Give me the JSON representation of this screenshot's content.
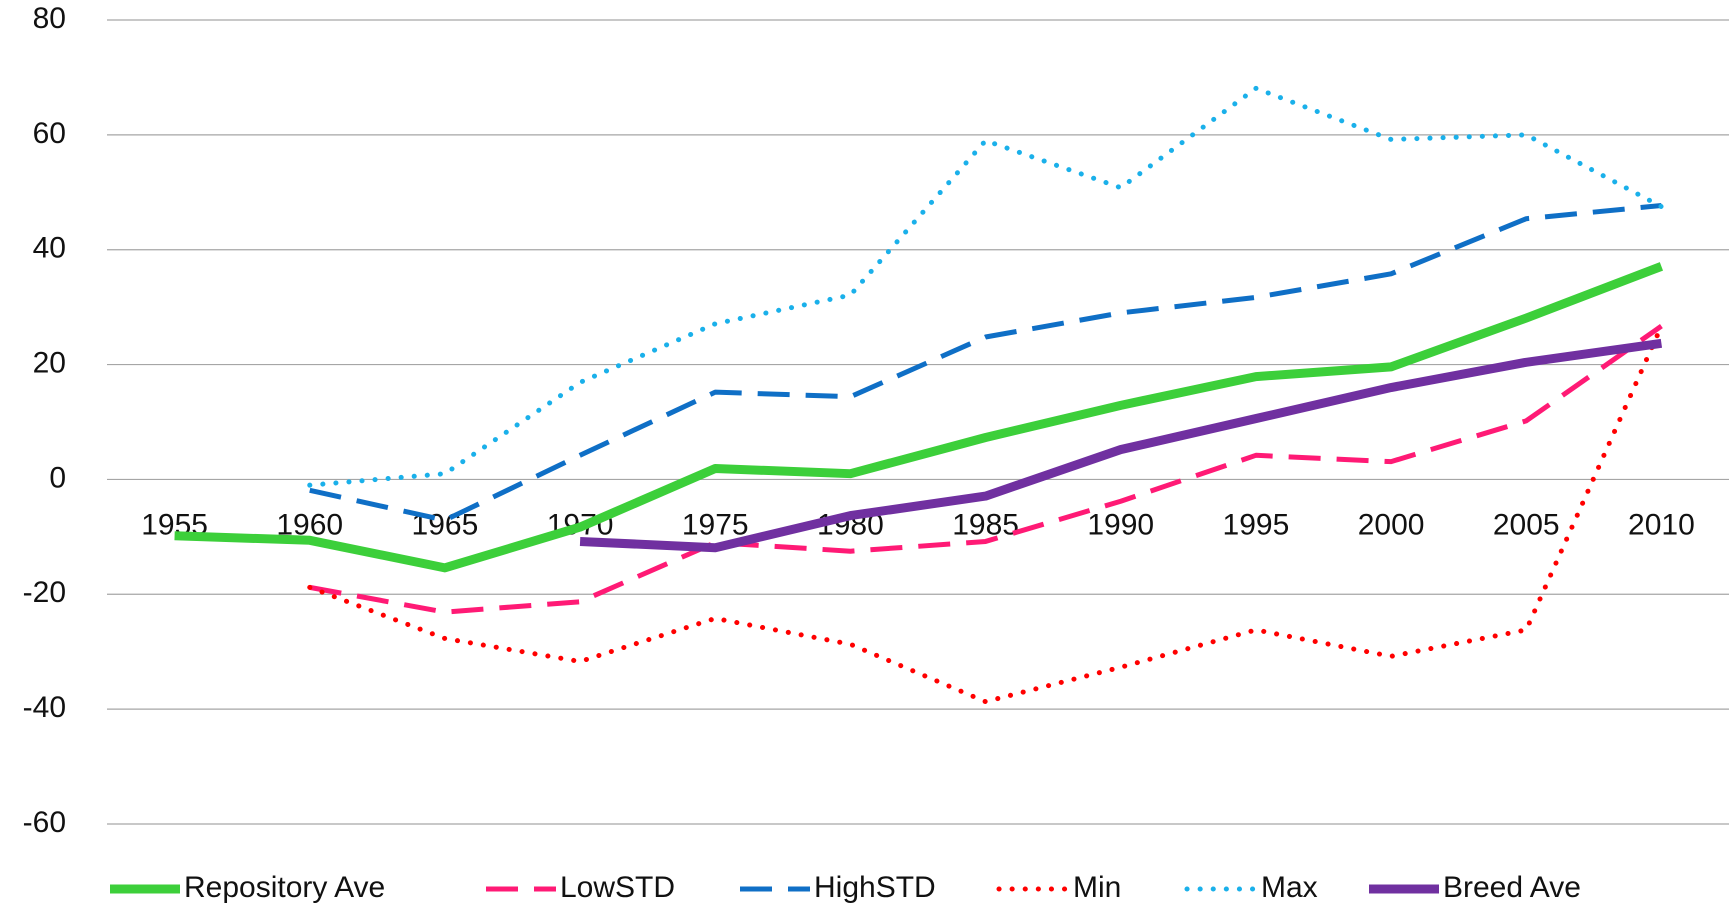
{
  "chart_data": {
    "type": "line",
    "categories": [
      "1955",
      "1960",
      "1965",
      "1970",
      "1975",
      "1980",
      "1985",
      "1990",
      "1995",
      "2000",
      "2005",
      "2010"
    ],
    "series": [
      {
        "name": "Repository Ave",
        "color": "#3ccf3a",
        "dash": "solid",
        "width": "thick",
        "values": [
          -9.8,
          -10.6,
          -15.4,
          -8.3,
          1.9,
          1.0,
          7.3,
          12.9,
          17.9,
          19.6,
          28.1,
          37.1
        ]
      },
      {
        "name": "LowSTD",
        "color": "#ff1a75",
        "dash": "dashed",
        "width": "normal",
        "values": [
          null,
          -18.8,
          -23.1,
          -21.3,
          -11.0,
          -12.5,
          -10.8,
          -3.8,
          4.2,
          3.1,
          10.2,
          26.7
        ]
      },
      {
        "name": "HighSTD",
        "color": "#0f6fc6",
        "dash": "dashed",
        "width": "normal",
        "values": [
          null,
          -1.9,
          -7.1,
          4.2,
          15.2,
          14.4,
          24.8,
          29.0,
          31.7,
          35.8,
          45.4,
          47.7
        ]
      },
      {
        "name": "Min",
        "color": "#ff0000",
        "dash": "dotted",
        "width": "normal",
        "values": [
          null,
          -18.8,
          -27.7,
          -31.7,
          -24.2,
          -28.7,
          -38.7,
          -32.7,
          -26.2,
          -30.8,
          -26.2,
          26.7
        ]
      },
      {
        "name": "Max",
        "color": "#1ab0ea",
        "dash": "dotted",
        "width": "normal",
        "values": [
          null,
          -1.0,
          1.0,
          16.9,
          27.1,
          32.1,
          59.0,
          50.8,
          68.1,
          59.2,
          60.0,
          47.5
        ]
      },
      {
        "name": "Breed Ave",
        "color": "#7030a0",
        "dash": "solid",
        "width": "thick",
        "values": [
          null,
          null,
          null,
          -10.8,
          -11.9,
          -6.3,
          -2.9,
          5.2,
          10.6,
          16.0,
          20.4,
          23.7
        ]
      }
    ],
    "ylim": [
      -60,
      80
    ],
    "yticks": [
      -60,
      -40,
      -20,
      0,
      20,
      40,
      60,
      80
    ],
    "grid": true,
    "legend": "bottom"
  }
}
